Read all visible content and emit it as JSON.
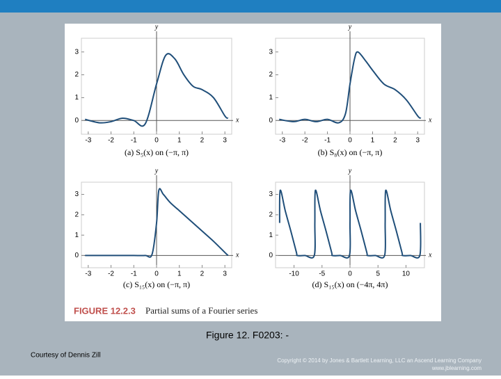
{
  "chart_data": [
    {
      "type": "line",
      "caption": "(a) S₅(x) on (−π, π)",
      "x_label": "x",
      "y_label": "y",
      "x": [
        -3.14,
        -2.5,
        -2,
        -1.5,
        -1,
        -0.5,
        0,
        0.4,
        0.8,
        1.2,
        1.6,
        2,
        2.5,
        3,
        3.14
      ],
      "series": [
        {
          "color": "#1f4e79",
          "values": [
            0.05,
            -0.1,
            -0.05,
            0.1,
            0,
            -0.15,
            1.6,
            2.85,
            2.7,
            2.0,
            1.5,
            1.35,
            1.0,
            0.2,
            0.1
          ]
        }
      ],
      "xlim": [
        -3.3,
        3.3
      ],
      "ylim": [
        -0.6,
        3.6
      ],
      "xticks": [
        -3,
        -2,
        -1,
        0,
        1,
        2,
        3
      ],
      "yticks": [
        0,
        1,
        2,
        3
      ]
    },
    {
      "type": "line",
      "caption": "(b) S₈(x) on (−π, π)",
      "x_label": "x",
      "y_label": "y",
      "x": [
        -3.14,
        -2.5,
        -2,
        -1.5,
        -1,
        -0.5,
        -0.2,
        0,
        0.2,
        0.35,
        0.7,
        1,
        1.5,
        2,
        2.5,
        3,
        3.14
      ],
      "series": [
        {
          "color": "#1f4e79",
          "values": [
            0.05,
            -0.05,
            0.05,
            -0.05,
            0.05,
            -0.1,
            0.3,
            1.6,
            2.7,
            3.0,
            2.6,
            2.2,
            1.6,
            1.35,
            0.9,
            0.2,
            0.1
          ]
        }
      ],
      "xlim": [
        -3.3,
        3.3
      ],
      "ylim": [
        -0.6,
        3.6
      ],
      "xticks": [
        -3,
        -2,
        -1,
        0,
        1,
        2,
        3
      ],
      "yticks": [
        0,
        1,
        2,
        3
      ]
    },
    {
      "type": "line",
      "caption": "(c) S₁₅(x) on (−π, π)",
      "x_label": "x",
      "y_label": "y",
      "x": [
        -3.14,
        -2.5,
        -2,
        -1.5,
        -1,
        -0.5,
        -0.2,
        0,
        0.1,
        0.3,
        0.6,
        1,
        1.5,
        2,
        2.5,
        3,
        3.14
      ],
      "series": [
        {
          "color": "#1f4e79",
          "values": [
            0,
            0,
            0,
            0,
            0,
            0,
            0.05,
            1.6,
            3.2,
            3.0,
            2.6,
            2.2,
            1.7,
            1.2,
            0.7,
            0.15,
            0
          ]
        }
      ],
      "xlim": [
        -3.3,
        3.3
      ],
      "ylim": [
        -0.6,
        3.6
      ],
      "xticks": [
        -3,
        -2,
        -1,
        0,
        1,
        2,
        3
      ],
      "yticks": [
        0,
        1,
        2,
        3
      ]
    },
    {
      "type": "line",
      "caption": "(d) S₁₅(x) on (−4π, 4π)",
      "x_label": "x",
      "y_label": "y",
      "x": [
        -12.57,
        -12.47,
        -11.57,
        -10.57,
        -9.57,
        -9.42,
        -8.07,
        -6.38,
        -6.28,
        -6.18,
        -5.28,
        -4.28,
        -3.28,
        -3.14,
        -1.78,
        -0.1,
        0,
        0.1,
        1,
        2,
        3,
        3.14,
        4.5,
        6.18,
        6.28,
        6.38,
        7.28,
        8.28,
        9.28,
        9.42,
        10.78,
        12.47,
        12.57
      ],
      "series": [
        {
          "color": "#1f4e79",
          "values": [
            1.6,
            3.2,
            2.2,
            1.2,
            0.15,
            0,
            0,
            0,
            1.6,
            3.2,
            2.2,
            1.2,
            0.15,
            0,
            0,
            0,
            1.6,
            3.2,
            2.2,
            1.2,
            0.15,
            0,
            0,
            0,
            1.6,
            3.2,
            2.2,
            1.2,
            0.15,
            0,
            0,
            0,
            1.6
          ]
        }
      ],
      "xlim": [
        -13.3,
        13.3
      ],
      "ylim": [
        -0.6,
        3.6
      ],
      "xticks": [
        -10,
        -5,
        0,
        5,
        10
      ],
      "yticks": [
        0,
        1,
        2,
        3
      ]
    }
  ],
  "figure_label": "FIGURE 12.2.3",
  "figure_title": "Partial sums of a Fourier series",
  "slide_caption": "Figure 12. F0203: -",
  "courtesy": "Courtesy of Dennis Zill",
  "copyright": "Copyright © 2014 by Jones & Bartlett Learning, LLC an Ascend Learning Company",
  "website": "www.jblearning.com"
}
